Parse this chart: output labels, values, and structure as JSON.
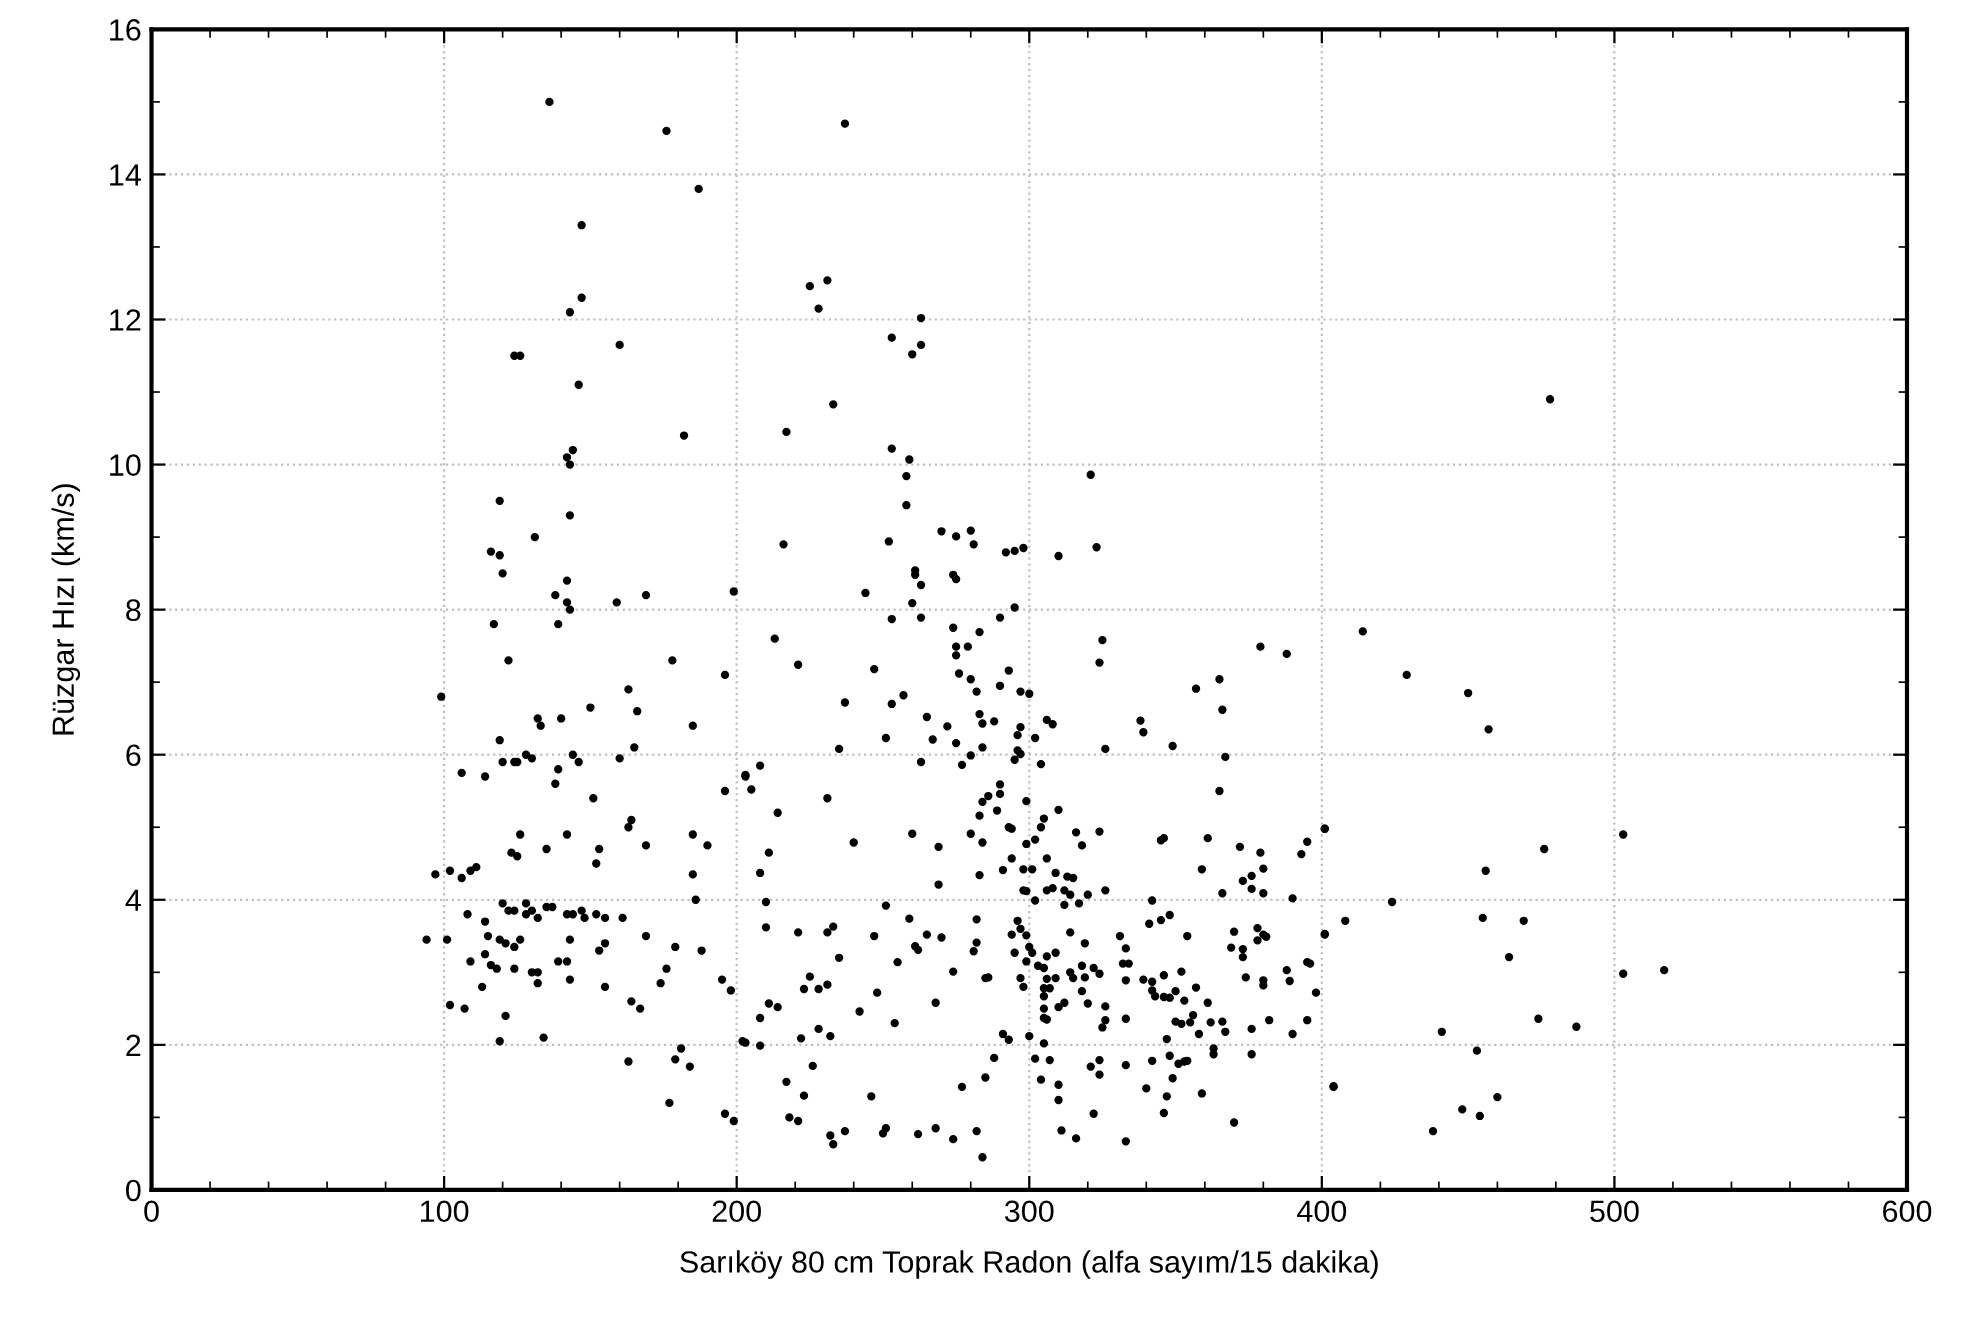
{
  "chart_data": {
    "type": "scatter",
    "xlabel": "Sarıköy 80 cm Toprak Radon (alfa sayım/15 dakika)",
    "ylabel": "Rüzgar Hızı (km/s)",
    "xlim": [
      0,
      600
    ],
    "xticks": [
      0,
      100,
      200,
      300,
      400,
      500,
      600
    ],
    "ylim": [
      0,
      16
    ],
    "yticks": [
      0,
      2,
      4,
      6,
      8,
      10,
      12,
      14,
      16
    ],
    "grid": true,
    "marker": "circle",
    "series": [
      {
        "color": "#000000",
        "x": [
          136,
          176,
          187,
          147,
          147,
          143,
          124,
          126,
          160,
          146,
          182,
          144,
          142,
          143,
          119,
          143,
          131,
          116,
          119,
          120,
          142,
          138,
          142,
          143,
          159,
          169,
          199,
          117,
          139,
          122,
          178,
          196,
          99,
          132,
          133,
          140,
          150,
          163,
          166,
          185,
          119,
          120,
          124,
          125,
          128,
          130,
          106,
          114,
          139,
          138,
          144,
          146,
          160,
          165,
          151,
          196,
          203,
          126,
          135,
          142,
          123,
          125,
          164,
          163,
          169,
          185,
          190,
          185,
          153,
          152,
          97,
          102,
          106,
          109,
          111,
          186,
          120,
          122,
          124,
          128,
          128,
          130,
          132,
          135,
          137,
          142,
          144,
          147,
          148,
          152,
          155,
          161,
          108,
          114,
          94,
          101,
          115,
          119,
          121,
          124,
          126,
          143,
          155,
          153,
          169,
          179,
          188,
          109,
          114,
          116,
          118,
          124,
          130,
          132,
          132,
          139,
          142,
          143,
          113,
          155,
          176,
          174,
          164,
          167,
          195,
          198,
          102,
          107,
          121,
          119,
          134,
          202,
          163,
          179,
          181,
          184,
          177,
          196,
          199,
          237,
          225,
          231,
          228,
          263,
          253,
          260,
          263,
          233,
          217,
          253,
          259,
          258,
          258,
          216,
          252,
          270,
          275,
          280,
          281,
          261,
          261,
          263,
          274,
          275,
          292,
          295,
          298,
          310,
          321,
          323,
          244,
          260,
          263,
          253,
          213,
          274,
          275,
          279,
          275,
          276,
          283,
          290,
          295,
          325,
          324,
          221,
          247,
          280,
          282,
          290,
          293,
          297,
          300,
          237,
          253,
          257,
          265,
          272,
          267,
          275,
          283,
          284,
          288,
          297,
          296,
          306,
          308,
          302,
          251,
          235,
          263,
          277,
          280,
          284,
          295,
          297,
          296,
          304,
          338,
          339,
          349,
          365,
          366,
          357,
          367,
          365,
          379,
          388,
          326,
          203,
          208,
          205,
          231,
          214,
          240,
          260,
          269,
          211,
          208,
          269,
          280,
          284,
          283,
          284,
          290,
          289,
          290,
          286,
          299,
          293,
          294,
          304,
          305,
          310,
          299,
          302,
          316,
          318,
          324,
          294,
          291,
          283,
          298,
          301,
          298,
          299,
          302,
          306,
          306,
          308,
          309,
          313,
          315,
          312,
          314,
          317,
          320,
          326,
          312,
          345,
          346,
          361,
          359,
          366,
          372,
          379,
          373,
          376,
          380,
          380,
          376,
          393,
          395,
          401,
          390,
          210,
          251,
          210,
          221,
          231,
          233,
          235,
          247,
          259,
          261,
          262,
          265,
          270,
          255,
          282,
          282,
          281,
          294,
          296,
          297,
          295,
          299,
          300,
          299,
          301,
          303,
          305,
          306,
          309,
          297,
          298,
          306,
          309,
          314,
          318,
          319,
          322,
          324,
          314,
          319,
          331,
          333,
          332,
          334,
          342,
          341,
          345,
          348,
          354,
          369,
          370,
          373,
          373,
          378,
          380,
          381,
          378,
          374,
          380,
          380,
          388,
          389,
          395,
          396,
          398,
          401,
          248,
          254,
          268,
          274,
          285,
          286,
          203,
          208,
          208,
          211,
          214,
          222,
          225,
          223,
          228,
          231,
          232,
          228,
          242,
          305,
          305,
          305,
          305,
          306,
          307,
          310,
          312,
          315,
          318,
          320,
          326,
          326,
          325,
          333,
          339,
          342,
          333,
          342,
          343,
          346,
          346,
          348,
          352,
          353,
          350,
          350,
          352,
          357,
          361,
          356,
          355,
          358,
          362,
          366,
          367,
          376,
          382,
          390,
          395,
          217,
          223,
          226,
          218,
          221,
          232,
          233,
          237,
          246,
          250,
          251,
          262,
          268,
          274,
          277,
          282,
          284,
          333,
          322,
          311,
          316,
          285,
          288,
          291,
          293,
          300,
          302,
          304,
          305,
          307,
          310,
          310,
          324,
          321,
          324,
          333,
          340,
          347,
          342,
          348,
          351,
          353,
          354,
          349,
          347,
          346,
          363,
          363,
          359,
          370,
          376,
          404,
          478,
          414,
          429,
          450,
          457,
          401,
          503,
          476,
          456,
          424,
          408,
          401,
          455,
          469,
          464,
          503,
          517,
          474,
          487,
          441,
          453,
          404,
          448,
          454,
          460,
          438
        ],
        "values": [
          15.0,
          14.6,
          13.8,
          13.3,
          12.3,
          12.1,
          11.5,
          11.5,
          11.65,
          11.1,
          10.4,
          10.2,
          10.1,
          10.0,
          9.5,
          9.3,
          9.0,
          8.8,
          8.75,
          8.5,
          8.4,
          8.2,
          8.1,
          8.0,
          8.1,
          8.2,
          8.25,
          7.8,
          7.8,
          7.3,
          7.3,
          7.1,
          6.8,
          6.5,
          6.4,
          6.5,
          6.65,
          6.9,
          6.6,
          6.4,
          6.2,
          5.9,
          5.9,
          5.9,
          6.0,
          5.95,
          5.75,
          5.7,
          5.8,
          5.6,
          6.0,
          5.9,
          5.95,
          6.1,
          5.4,
          5.5,
          5.7,
          4.9,
          4.7,
          4.9,
          4.65,
          4.6,
          5.1,
          5.0,
          4.75,
          4.9,
          4.75,
          4.35,
          4.7,
          4.5,
          4.35,
          4.4,
          4.3,
          4.4,
          4.45,
          4.0,
          3.95,
          3.85,
          3.85,
          3.95,
          3.8,
          3.85,
          3.75,
          3.9,
          3.9,
          3.8,
          3.8,
          3.85,
          3.75,
          3.8,
          3.75,
          3.75,
          3.8,
          3.7,
          3.45,
          3.45,
          3.5,
          3.45,
          3.4,
          3.35,
          3.45,
          3.45,
          3.4,
          3.3,
          3.5,
          3.35,
          3.3,
          3.15,
          3.25,
          3.1,
          3.05,
          3.05,
          3.0,
          3.0,
          2.85,
          3.15,
          3.15,
          2.9,
          2.8,
          2.8,
          3.05,
          2.85,
          2.6,
          2.5,
          2.9,
          2.75,
          2.55,
          2.5,
          2.4,
          2.05,
          2.1,
          2.05,
          1.77,
          1.8,
          1.95,
          1.7,
          1.2,
          1.05,
          0.95,
          14.7,
          12.46,
          12.54,
          12.15,
          12.02,
          11.75,
          11.52,
          11.65,
          10.83,
          10.45,
          10.22,
          10.07,
          9.84,
          9.44,
          8.9,
          8.94,
          9.08,
          9.01,
          9.09,
          8.9,
          8.54,
          8.48,
          8.34,
          8.48,
          8.42,
          8.79,
          8.81,
          8.85,
          8.74,
          9.86,
          8.86,
          8.23,
          8.09,
          7.89,
          7.87,
          7.6,
          7.75,
          7.49,
          7.49,
          7.37,
          7.12,
          7.69,
          7.89,
          8.03,
          7.58,
          7.27,
          7.24,
          7.18,
          7.04,
          6.87,
          6.95,
          7.16,
          6.87,
          6.84,
          6.72,
          6.7,
          6.82,
          6.52,
          6.39,
          6.21,
          6.16,
          6.56,
          6.43,
          6.46,
          6.38,
          6.27,
          6.48,
          6.42,
          6.23,
          6.23,
          6.08,
          5.9,
          5.86,
          5.99,
          6.1,
          5.93,
          6.01,
          6.06,
          5.87,
          6.47,
          6.31,
          6.12,
          7.04,
          6.62,
          6.91,
          5.97,
          5.5,
          7.49,
          7.39,
          6.08,
          5.72,
          5.85,
          5.52,
          5.4,
          5.2,
          4.79,
          4.91,
          4.73,
          4.65,
          4.37,
          4.21,
          4.91,
          4.79,
          5.16,
          5.35,
          5.46,
          5.23,
          5.59,
          5.43,
          5.36,
          5.0,
          4.98,
          5.0,
          5.12,
          5.24,
          4.77,
          4.83,
          4.93,
          4.75,
          4.94,
          4.57,
          4.41,
          4.34,
          4.42,
          4.42,
          4.13,
          4.12,
          3.99,
          4.57,
          4.13,
          4.16,
          4.37,
          4.32,
          4.3,
          4.13,
          4.07,
          3.95,
          4.07,
          4.13,
          3.93,
          4.82,
          4.85,
          4.85,
          4.42,
          4.09,
          4.73,
          4.65,
          4.26,
          4.33,
          4.43,
          4.09,
          4.15,
          4.63,
          4.8,
          4.98,
          4.02,
          3.97,
          3.92,
          3.62,
          3.55,
          3.55,
          3.63,
          3.2,
          3.5,
          3.74,
          3.36,
          3.31,
          3.52,
          3.48,
          3.14,
          3.73,
          3.41,
          3.29,
          3.52,
          3.71,
          3.6,
          3.27,
          3.51,
          3.35,
          3.15,
          3.27,
          3.09,
          3.06,
          3.22,
          3.27,
          2.92,
          2.8,
          2.91,
          2.92,
          3.0,
          3.09,
          2.93,
          3.06,
          2.98,
          3.55,
          3.4,
          3.5,
          3.33,
          3.12,
          3.12,
          3.99,
          3.67,
          3.72,
          3.79,
          3.5,
          3.34,
          3.56,
          3.32,
          3.21,
          3.61,
          3.52,
          3.49,
          3.44,
          2.93,
          2.89,
          2.82,
          3.03,
          2.88,
          3.14,
          3.12,
          2.72,
          3.53,
          2.72,
          2.3,
          2.58,
          3.01,
          2.92,
          2.93,
          2.03,
          1.99,
          2.37,
          2.57,
          2.52,
          2.09,
          2.94,
          2.77,
          2.77,
          2.83,
          2.12,
          2.22,
          2.46,
          2.78,
          2.67,
          2.5,
          2.37,
          2.35,
          2.78,
          2.52,
          2.58,
          2.92,
          2.74,
          2.57,
          2.53,
          2.34,
          2.24,
          2.89,
          2.9,
          2.87,
          2.36,
          2.75,
          2.67,
          2.96,
          2.66,
          2.65,
          3.01,
          2.61,
          2.74,
          2.32,
          2.29,
          2.79,
          2.58,
          2.41,
          2.31,
          2.15,
          2.31,
          2.32,
          2.18,
          2.22,
          2.34,
          2.15,
          2.34,
          1.49,
          1.3,
          1.71,
          1.0,
          0.95,
          0.75,
          0.63,
          0.81,
          1.29,
          0.78,
          0.85,
          0.77,
          0.85,
          0.7,
          1.42,
          0.81,
          0.45,
          0.67,
          1.05,
          0.82,
          0.71,
          1.55,
          1.82,
          2.15,
          2.07,
          2.12,
          1.81,
          1.52,
          2.02,
          1.79,
          1.45,
          1.24,
          1.79,
          1.7,
          1.59,
          1.72,
          1.4,
          2.08,
          1.78,
          1.85,
          1.74,
          1.77,
          1.78,
          1.54,
          1.29,
          1.06,
          1.95,
          1.87,
          1.33,
          0.93,
          1.87,
          1.43,
          10.9,
          7.7,
          7.1,
          6.85,
          6.35,
          4.98,
          4.9,
          4.7,
          4.4,
          3.97,
          3.71,
          3.52,
          3.75,
          3.71,
          3.21,
          2.98,
          3.03,
          2.36,
          2.25,
          2.18,
          1.92,
          1.42,
          1.11,
          1.02,
          1.28,
          0.81
        ]
      }
    ]
  }
}
